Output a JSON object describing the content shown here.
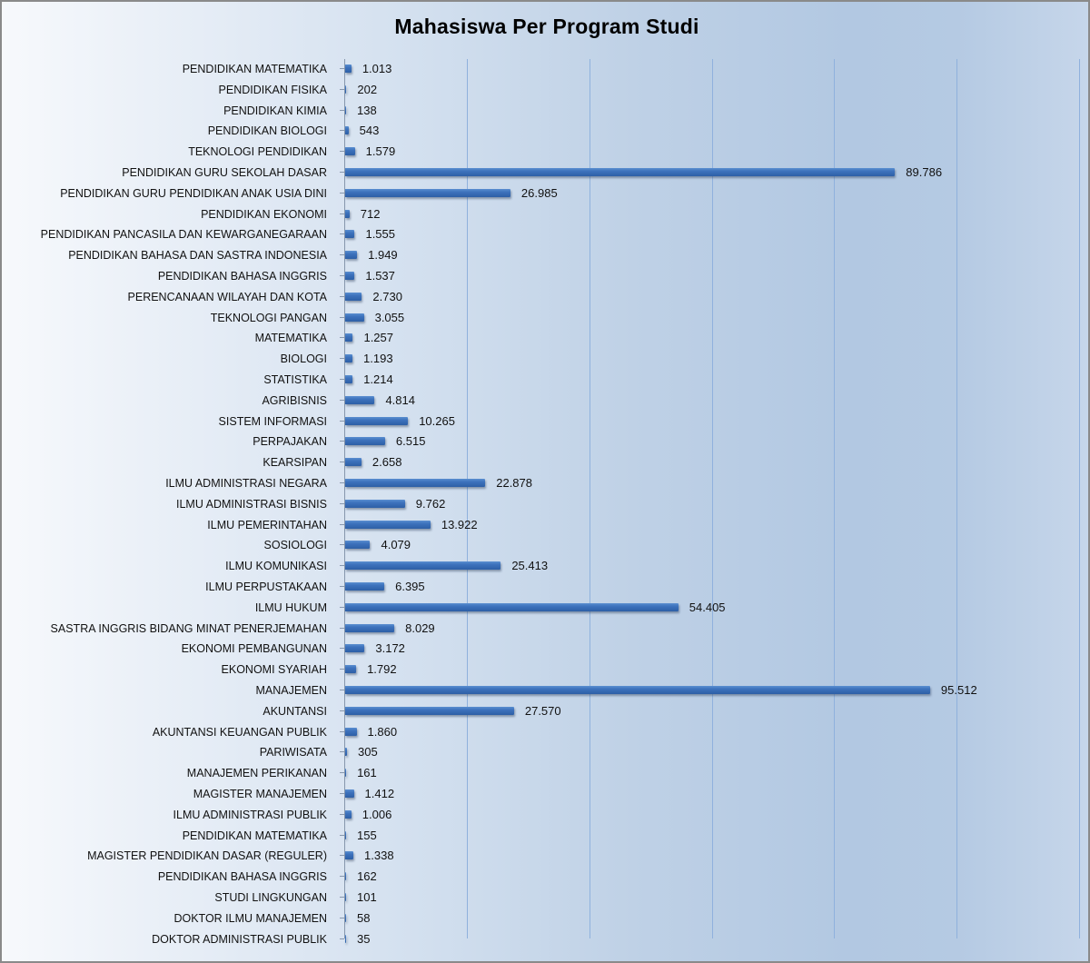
{
  "chart_data": {
    "type": "bar",
    "orientation": "horizontal",
    "title": "Mahasiswa Per Program Studi",
    "xlabel": "",
    "ylabel": "",
    "xlim": [
      0,
      120000
    ],
    "x_ticks": [
      0,
      20000,
      40000,
      60000,
      80000,
      100000,
      120000
    ],
    "x_tick_labels_visible": false,
    "grid": "vertical",
    "legend": "none",
    "bar_color": "#3e73bd",
    "number_format": "thousands separator '.'",
    "categories": [
      "PENDIDIKAN MATEMATIKA",
      "PENDIDIKAN FISIKA",
      "PENDIDIKAN KIMIA",
      "PENDIDIKAN BIOLOGI",
      "TEKNOLOGI PENDIDIKAN",
      "PENDIDIKAN GURU SEKOLAH DASAR",
      "PENDIDIKAN GURU PENDIDIKAN ANAK USIA DINI",
      "PENDIDIKAN EKONOMI",
      "PENDIDIKAN PANCASILA DAN KEWARGANEGARAAN",
      "PENDIDIKAN BAHASA DAN SASTRA INDONESIA",
      "PENDIDIKAN BAHASA INGGRIS",
      "PERENCANAAN WILAYAH DAN KOTA",
      "TEKNOLOGI PANGAN",
      "MATEMATIKA",
      "BIOLOGI",
      "STATISTIKA",
      "AGRIBISNIS",
      "SISTEM INFORMASI",
      "PERPAJAKAN",
      "KEARSIPAN",
      "ILMU ADMINISTRASI NEGARA",
      "ILMU ADMINISTRASI BISNIS",
      "ILMU PEMERINTAHAN",
      "SOSIOLOGI",
      "ILMU KOMUNIKASI",
      "ILMU PERPUSTAKAAN",
      "ILMU HUKUM",
      "SASTRA INGGRIS BIDANG MINAT PENERJEMAHAN",
      "EKONOMI PEMBANGUNAN",
      "EKONOMI SYARIAH",
      "MANAJEMEN",
      "AKUNTANSI",
      "AKUNTANSI KEUANGAN PUBLIK",
      "PARIWISATA",
      "MANAJEMEN PERIKANAN",
      "MAGISTER MANAJEMEN",
      "ILMU ADMINISTRASI PUBLIK",
      "PENDIDIKAN MATEMATIKA",
      "MAGISTER PENDIDIKAN DASAR (REGULER)",
      "PENDIDIKAN BAHASA INGGRIS",
      "STUDI LINGKUNGAN",
      "DOKTOR ILMU MANAJEMEN",
      "DOKTOR ADMINISTRASI PUBLIK"
    ],
    "values": [
      1013,
      202,
      138,
      543,
      1579,
      89786,
      26985,
      712,
      1555,
      1949,
      1537,
      2730,
      3055,
      1257,
      1193,
      1214,
      4814,
      10265,
      6515,
      2658,
      22878,
      9762,
      13922,
      4079,
      25413,
      6395,
      54405,
      8029,
      3172,
      1792,
      95512,
      27570,
      1860,
      305,
      161,
      1412,
      1006,
      155,
      1338,
      162,
      101,
      58,
      35
    ],
    "value_labels": [
      "1.013",
      "202",
      "138",
      "543",
      "1.579",
      "89.786",
      "26.985",
      "712",
      "1.555",
      "1.949",
      "1.537",
      "2.730",
      "3.055",
      "1.257",
      "1.193",
      "1.214",
      "4.814",
      "10.265",
      "6.515",
      "2.658",
      "22.878",
      "9.762",
      "13.922",
      "4.079",
      "25.413",
      "6.395",
      "54.405",
      "8.029",
      "3.172",
      "1.792",
      "95.512",
      "27.570",
      "1.860",
      "305",
      "161",
      "1.412",
      "1.006",
      "155",
      "1.338",
      "162",
      "101",
      "58",
      "35"
    ]
  }
}
